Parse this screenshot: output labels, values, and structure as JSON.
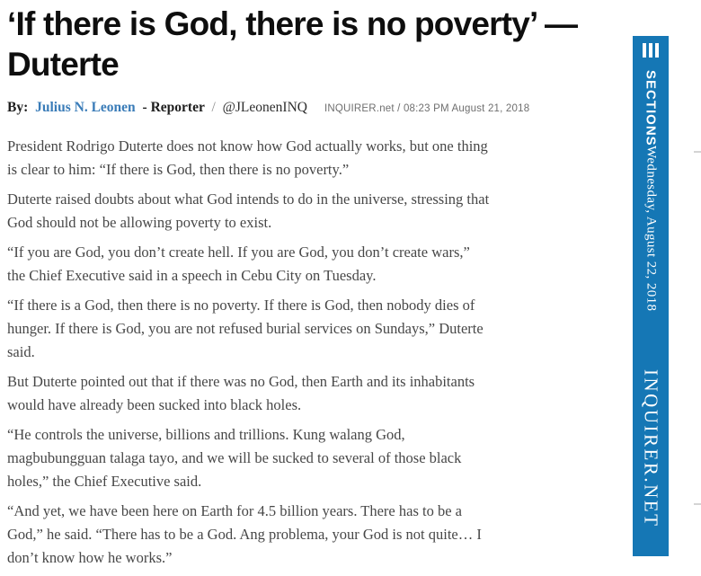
{
  "article": {
    "title_line1": "‘If there is God, there is no poverty’ —",
    "title_line2": "Duterte",
    "byline": {
      "prefix": "By:",
      "author": "Julius N. Leonen",
      "role": "- Reporter",
      "separator": "/",
      "twitter": "@JLeonenINQ"
    },
    "source_line": "INQUIRER.net / 08:23 PM August 21, 2018",
    "paragraphs": [
      "President Rodrigo Duterte does not know how God actually works, but one thing is clear to him: “If there is God, then there is no poverty.”",
      "Duterte raised doubts about what God intends to do in the universe, stressing that God should not be allowing poverty to exist.",
      "“If you are God, you don’t create hell. If you are God, you don’t create wars,” the Chief Executive said in a speech in Cebu City on Tuesday.",
      "“If there is a God, then there is no poverty. If there is God, then nobody dies of hunger. If there is God, you are not refused burial services on Sundays,” Duterte said.",
      "But Duterte pointed out that if there was no God, then Earth and its inhabitants would have already been sucked into black holes.",
      "“He controls the universe, billions and trillions. Kung walang God, magbubungguan talaga tayo, and we will be sucked to several of those black holes,” the Chief Executive said.",
      "“And yet, we have been here on Earth for 4.5 billion years. There has to be a God,” he said. “There has to be a God. Ang problema, your God is not quite… I don’t know how he works.”"
    ]
  },
  "sidebar": {
    "menu_icon": "hamburger-icon",
    "sections_label": "SECTIONS",
    "date": "Wednesday, August 22, 2018",
    "brand": "INQUIRER.NET"
  },
  "colors": {
    "sidebar_blue": "#1577b5",
    "link_blue": "#3a7cb8",
    "headline_black": "#0e0e0e",
    "body_gray": "#474747",
    "timestamp_gray": "#6f6f6f"
  }
}
